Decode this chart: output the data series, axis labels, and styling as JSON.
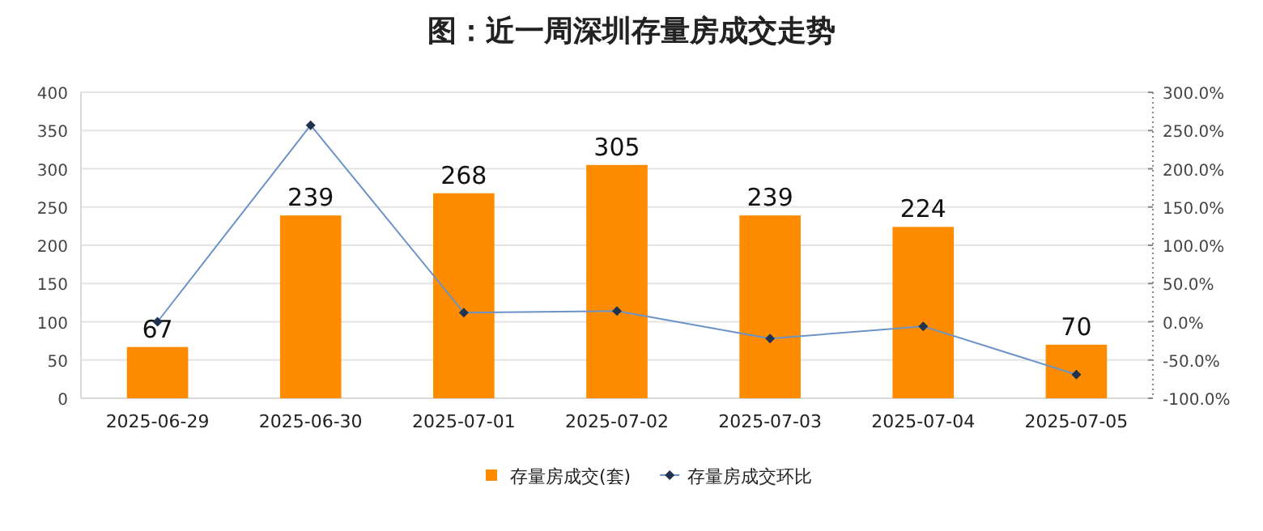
{
  "chart_data": {
    "type": "bar",
    "title": "图：近一周深圳存量房成交走势",
    "categories": [
      "2025-06-29",
      "2025-06-30",
      "2025-07-01",
      "2025-07-02",
      "2025-07-03",
      "2025-07-04",
      "2025-07-05"
    ],
    "series": [
      {
        "name": "存量房成交(套)",
        "color": "#ff8c00",
        "values": [
          67,
          239,
          268,
          305,
          239,
          224,
          70
        ]
      },
      {
        "name": "存量房成交环比",
        "type": "line",
        "axis": "y2",
        "color": "#6b93c6",
        "marker": "diamond",
        "values": [
          0,
          257,
          12,
          14,
          -22,
          -6,
          -69
        ]
      }
    ],
    "ylim": [
      0,
      400
    ],
    "yticks": [
      0,
      50,
      100,
      150,
      200,
      250,
      300,
      350,
      400
    ],
    "y2lim": [
      -100,
      300
    ],
    "y2ticks": [
      {
        "value": -100,
        "label": "-100.0%"
      },
      {
        "value": -50,
        "label": "-50.0%"
      },
      {
        "value": 0,
        "label": "0.0%"
      },
      {
        "value": 50,
        "label": "50.0%"
      },
      {
        "value": 100,
        "label": "100.0%"
      },
      {
        "value": 150,
        "label": "150.0%"
      },
      {
        "value": 200,
        "label": "200.0%"
      },
      {
        "value": 250,
        "label": "250.0%"
      },
      {
        "value": 300,
        "label": "300.0%"
      }
    ],
    "value_labels": [
      "67",
      "239",
      "268",
      "305",
      "239",
      "224",
      "70"
    ],
    "grid": "y",
    "legend": "bottom"
  }
}
